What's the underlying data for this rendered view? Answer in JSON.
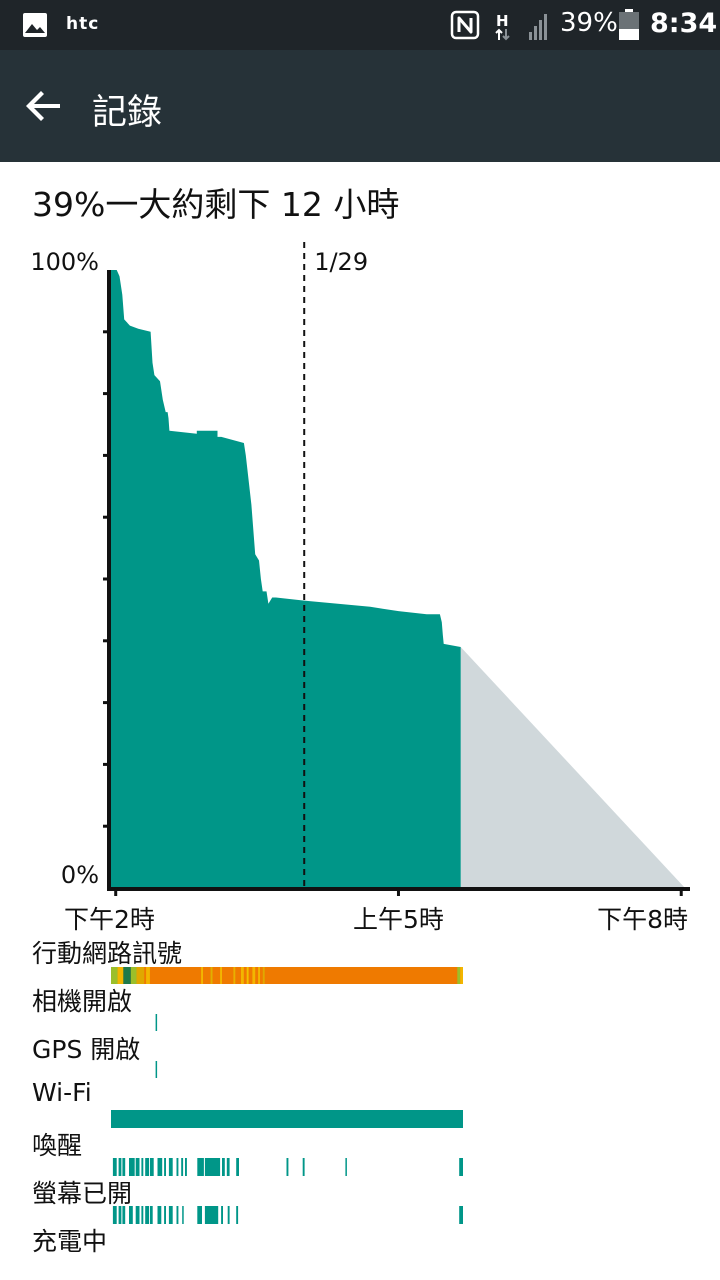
{
  "status_bar": {
    "carrier": "htc",
    "network_type": "H",
    "battery_percent": "39%",
    "time": "8:34"
  },
  "app_bar": {
    "title": "記錄",
    "back_icon": "arrow-left-icon"
  },
  "summary": "39%一大約剩下 12 小時",
  "chart_data": {
    "type": "area",
    "ylabel_top": "100%",
    "ylabel_bottom": "0%",
    "ylim": [
      0,
      100
    ],
    "x_tick_labels": [
      "下午2時",
      "上午5時",
      "下午8時"
    ],
    "x_tick_hours": [
      14,
      29,
      44
    ],
    "date_marker": {
      "label": "1/29",
      "hour": 24
    },
    "xlim_hours": [
      13.75,
      44.2
    ],
    "grid": false,
    "series": [
      {
        "kind": "measured",
        "color": "#009688",
        "points": [
          [
            13.75,
            100
          ],
          [
            14.05,
            100
          ],
          [
            14.2,
            99
          ],
          [
            14.35,
            96
          ],
          [
            14.45,
            92
          ],
          [
            14.75,
            91
          ],
          [
            15.2,
            90.5
          ],
          [
            15.85,
            90
          ],
          [
            15.95,
            85
          ],
          [
            16.05,
            83
          ],
          [
            16.35,
            82
          ],
          [
            16.5,
            79
          ],
          [
            16.65,
            77
          ],
          [
            16.75,
            77
          ],
          [
            16.8,
            76
          ],
          [
            16.85,
            74
          ],
          [
            18.3,
            73.5
          ],
          [
            18.3,
            74
          ],
          [
            18.9,
            74
          ],
          [
            19.4,
            74
          ],
          [
            19.4,
            73
          ],
          [
            19.6,
            73
          ],
          [
            20.8,
            72
          ],
          [
            20.9,
            70
          ],
          [
            21.2,
            62
          ],
          [
            21.4,
            54
          ],
          [
            21.6,
            53
          ],
          [
            21.7,
            50
          ],
          [
            21.8,
            48
          ],
          [
            22.0,
            48
          ],
          [
            22.1,
            46
          ],
          [
            22.3,
            47
          ],
          [
            22.5,
            47
          ],
          [
            24.0,
            46.5
          ],
          [
            27.5,
            45.5
          ],
          [
            29.0,
            44.8
          ],
          [
            30.5,
            44.3
          ],
          [
            31.2,
            44.3
          ],
          [
            31.3,
            43
          ],
          [
            31.35,
            41
          ],
          [
            31.4,
            39.5
          ],
          [
            32.3,
            39
          ],
          [
            32.3,
            0
          ],
          [
            13.75,
            0
          ]
        ]
      },
      {
        "kind": "projected",
        "color": "#d0d8db",
        "points": [
          [
            32.3,
            39
          ],
          [
            44.2,
            0
          ],
          [
            32.3,
            0
          ]
        ]
      }
    ]
  },
  "usage_rows": [
    {
      "label": "行動網路訊號",
      "kind": "signal"
    },
    {
      "label": "相機開啟",
      "kind": "camera"
    },
    {
      "label": "GPS 開啟",
      "kind": "gps"
    },
    {
      "label": "Wi-Fi",
      "kind": "wifi"
    },
    {
      "label": "喚醒",
      "kind": "awake"
    },
    {
      "label": "螢幕已開",
      "kind": "screen"
    },
    {
      "label": "充電中",
      "kind": "charging"
    }
  ],
  "usage_tracks": {
    "span_hours": [
      13.75,
      32.3
    ],
    "signal": {
      "base_color": "#ef7a00",
      "segments": [
        [
          13.75,
          14.1,
          "#9bbf2a"
        ],
        [
          14.1,
          14.4,
          "#f2b600"
        ],
        [
          14.4,
          14.8,
          "#1f7a4a"
        ],
        [
          14.8,
          15.1,
          "#9bbf2a"
        ],
        [
          15.1,
          15.5,
          "#e0a800"
        ],
        [
          15.6,
          15.8,
          "#f2b600"
        ],
        [
          18.5,
          18.6,
          "#f2b600"
        ],
        [
          19.0,
          19.1,
          "#e0b000"
        ],
        [
          19.5,
          19.6,
          "#f2b600"
        ],
        [
          20.2,
          20.3,
          "#e8b000"
        ],
        [
          20.6,
          20.75,
          "#f2b600"
        ],
        [
          20.9,
          21.0,
          "#f2c200"
        ],
        [
          21.2,
          21.35,
          "#f2b600"
        ],
        [
          21.5,
          21.6,
          "#f2b600"
        ],
        [
          21.75,
          21.85,
          "#e0a800"
        ],
        [
          32.0,
          32.15,
          "#9bbf2a"
        ],
        [
          32.15,
          32.3,
          "#f2b600"
        ]
      ]
    },
    "camera": {
      "color": "#009688",
      "segments": [
        [
          16.1,
          16.16
        ]
      ]
    },
    "gps": {
      "color": "#009688",
      "segments": [
        [
          16.1,
          16.16
        ]
      ]
    },
    "wifi": {
      "color": "#009688",
      "segments": [
        [
          13.75,
          32.3
        ]
      ]
    },
    "awake": {
      "color": "#009688",
      "segments": [
        [
          13.85,
          14.05
        ],
        [
          14.15,
          14.3
        ],
        [
          14.35,
          14.5
        ],
        [
          14.7,
          15.0
        ],
        [
          15.05,
          15.25
        ],
        [
          15.35,
          15.45
        ],
        [
          15.55,
          15.75
        ],
        [
          15.8,
          16.0
        ],
        [
          16.2,
          16.45
        ],
        [
          16.55,
          16.65
        ],
        [
          16.8,
          17.0
        ],
        [
          17.2,
          17.3
        ],
        [
          17.45,
          17.55
        ],
        [
          17.65,
          17.75
        ],
        [
          18.3,
          18.65
        ],
        [
          18.7,
          19.5
        ],
        [
          19.6,
          19.75
        ],
        [
          19.85,
          20.0
        ],
        [
          20.35,
          20.5
        ],
        [
          23.0,
          23.1
        ],
        [
          23.85,
          23.95
        ],
        [
          26.1,
          26.15
        ],
        [
          32.1,
          32.3
        ]
      ]
    },
    "screen": {
      "color": "#009688",
      "segments": [
        [
          13.85,
          14.05
        ],
        [
          14.15,
          14.3
        ],
        [
          14.35,
          14.5
        ],
        [
          14.7,
          14.9
        ],
        [
          15.05,
          15.25
        ],
        [
          15.35,
          15.45
        ],
        [
          15.55,
          15.75
        ],
        [
          15.8,
          15.95
        ],
        [
          16.2,
          16.4
        ],
        [
          16.55,
          16.65
        ],
        [
          16.8,
          17.0
        ],
        [
          17.2,
          17.3
        ],
        [
          17.5,
          17.55
        ],
        [
          18.3,
          18.55
        ],
        [
          18.7,
          19.4
        ],
        [
          19.55,
          19.65
        ],
        [
          19.9,
          20.0
        ],
        [
          20.35,
          20.45
        ],
        [
          32.1,
          32.3
        ]
      ]
    },
    "charging": {
      "color": "#009688",
      "segments": []
    }
  }
}
